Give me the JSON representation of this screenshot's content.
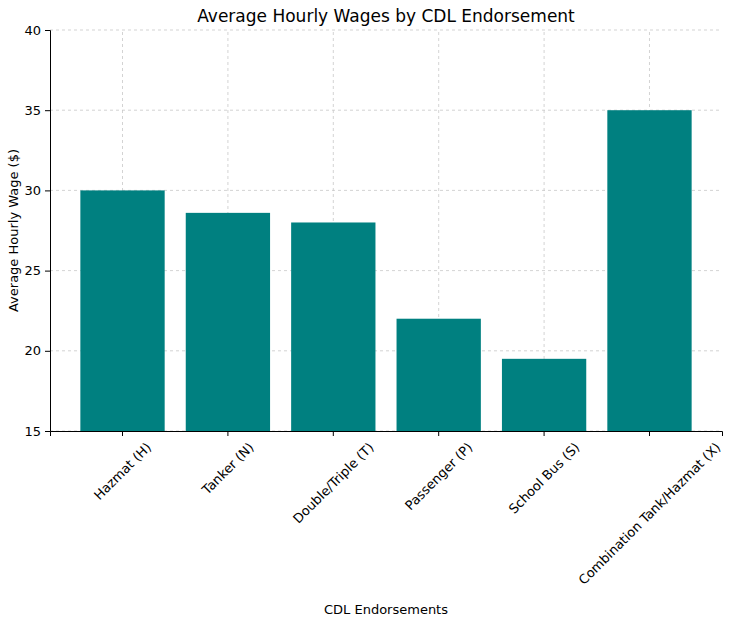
{
  "chart_data": {
    "type": "bar",
    "title": "Average Hourly Wages by CDL Endorsement",
    "x_label": "CDL Endorsements",
    "y_label": "Average Hourly Wage ($)",
    "categories": [
      "Hazmat (H)",
      "Tanker (N)",
      "Double/Triple (T)",
      "Passenger (P)",
      "School Bus (S)",
      "Combination Tank/Hazmat (X)"
    ],
    "values": [
      30,
      28.6,
      28,
      22,
      19.5,
      35
    ],
    "color": "#008080",
    "ylim": [
      15,
      40
    ],
    "yticks": [
      15,
      20,
      25,
      30,
      35,
      40
    ],
    "grid": true
  }
}
